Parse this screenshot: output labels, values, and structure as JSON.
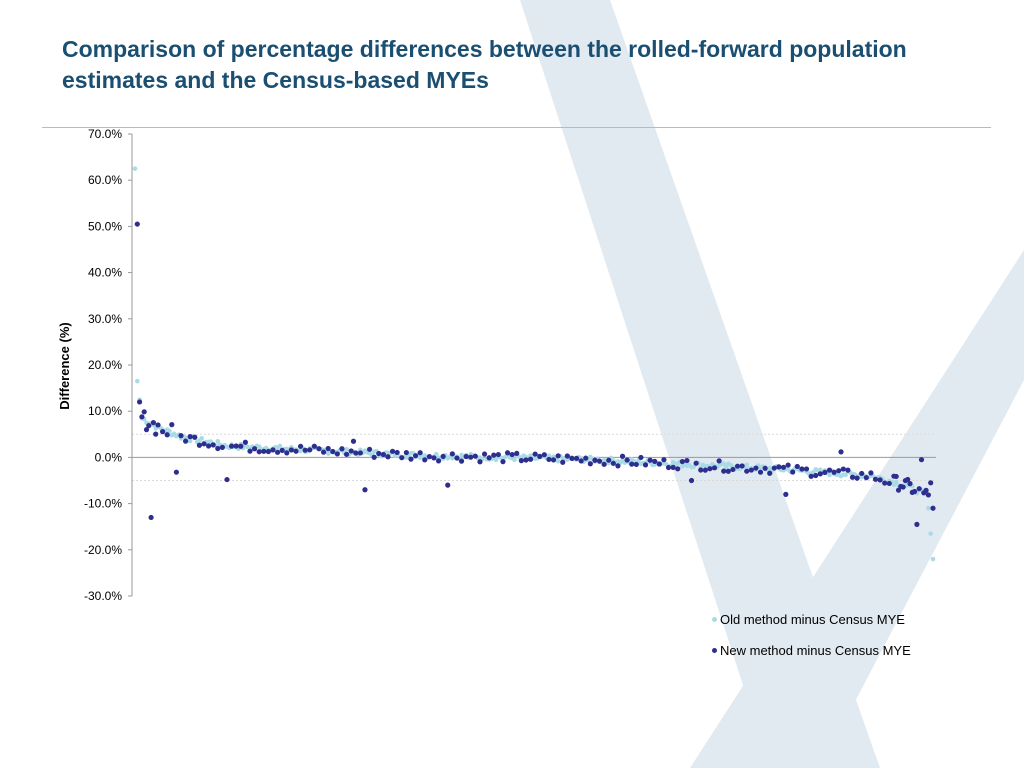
{
  "slide": {
    "title": "Comparison of percentage differences between the rolled-forward population estimates and the Census-based MYEs"
  },
  "colors": {
    "title": "#1b4f72",
    "rule": "#b5c97a",
    "old_series": "#a9dbe6",
    "new_series": "#2e2e8f",
    "background_shape": "#dce6ee"
  },
  "chart_data": {
    "type": "scatter",
    "ylabel": "Difference (%)",
    "xlabel": "",
    "ylim": [
      -30,
      70
    ],
    "yticks": [
      "70.0%",
      "60.0%",
      "50.0%",
      "40.0%",
      "30.0%",
      "20.0%",
      "10.0%",
      "0.0%",
      "-10.0%",
      "-20.0%",
      "-30.0%"
    ],
    "x_count": 348,
    "grid": false,
    "reference_lines": [
      5,
      -5
    ],
    "legend_position": "bottom-right",
    "series": [
      {
        "name": "Old method minus Census MYE",
        "color": "#a9dbe6",
        "values": [
          62.5,
          16.5,
          12.5,
          10.0,
          8.5,
          8.0,
          7.5,
          7.0,
          6.5,
          6.0,
          5.5,
          5.2,
          5.0,
          4.8,
          4.5,
          4.2,
          4.0,
          3.8,
          3.6,
          3.4,
          3.2,
          3.0,
          2.8,
          2.6,
          2.4,
          2.2,
          2.0,
          1.8,
          1.6,
          1.4,
          1.2,
          1.0,
          0.8,
          0.6,
          0.4,
          0.2,
          0.0,
          -0.2,
          -0.4,
          -0.6,
          -0.8,
          -1.0,
          -1.2,
          -1.4,
          -1.6,
          -1.8,
          -2.0,
          -2.2,
          -2.4,
          -2.6,
          -2.8,
          -3.0,
          -3.2,
          -3.4,
          -3.6,
          -3.8,
          -4.0,
          -4.5,
          -5.0,
          -6.0,
          -7.0,
          -8.0,
          -9.0,
          -11.0,
          -16.5,
          -22.0
        ]
      },
      {
        "name": "New method minus Census MYE",
        "color": "#2e2e8f",
        "outliers": [
          {
            "x": 1,
            "y": 50.5
          },
          {
            "x": 2,
            "y": 12.0
          },
          {
            "x": 7,
            "y": -13.0
          },
          {
            "x": 18,
            "y": -3.2
          },
          {
            "x": 40,
            "y": -4.8
          },
          {
            "x": 95,
            "y": 3.5
          },
          {
            "x": 100,
            "y": -7.0
          },
          {
            "x": 136,
            "y": -6.0
          },
          {
            "x": 242,
            "y": -5.0
          },
          {
            "x": 283,
            "y": -8.0
          },
          {
            "x": 307,
            "y": 1.2
          },
          {
            "x": 340,
            "y": -14.5
          },
          {
            "x": 342,
            "y": -0.5
          },
          {
            "x": 346,
            "y": -5.5
          },
          {
            "x": 347,
            "y": -11.0
          }
        ],
        "trend": [
          {
            "x": 3,
            "y": 8.5
          },
          {
            "x": 10,
            "y": 6.5
          },
          {
            "x": 20,
            "y": 4.5
          },
          {
            "x": 40,
            "y": 2.5
          },
          {
            "x": 80,
            "y": 1.5
          },
          {
            "x": 120,
            "y": 0.5
          },
          {
            "x": 160,
            "y": 0.0
          },
          {
            "x": 200,
            "y": -0.5
          },
          {
            "x": 240,
            "y": -1.5
          },
          {
            "x": 280,
            "y": -2.5
          },
          {
            "x": 320,
            "y": -4.0
          },
          {
            "x": 335,
            "y": -6.0
          },
          {
            "x": 348,
            "y": -9.0
          }
        ]
      }
    ]
  }
}
